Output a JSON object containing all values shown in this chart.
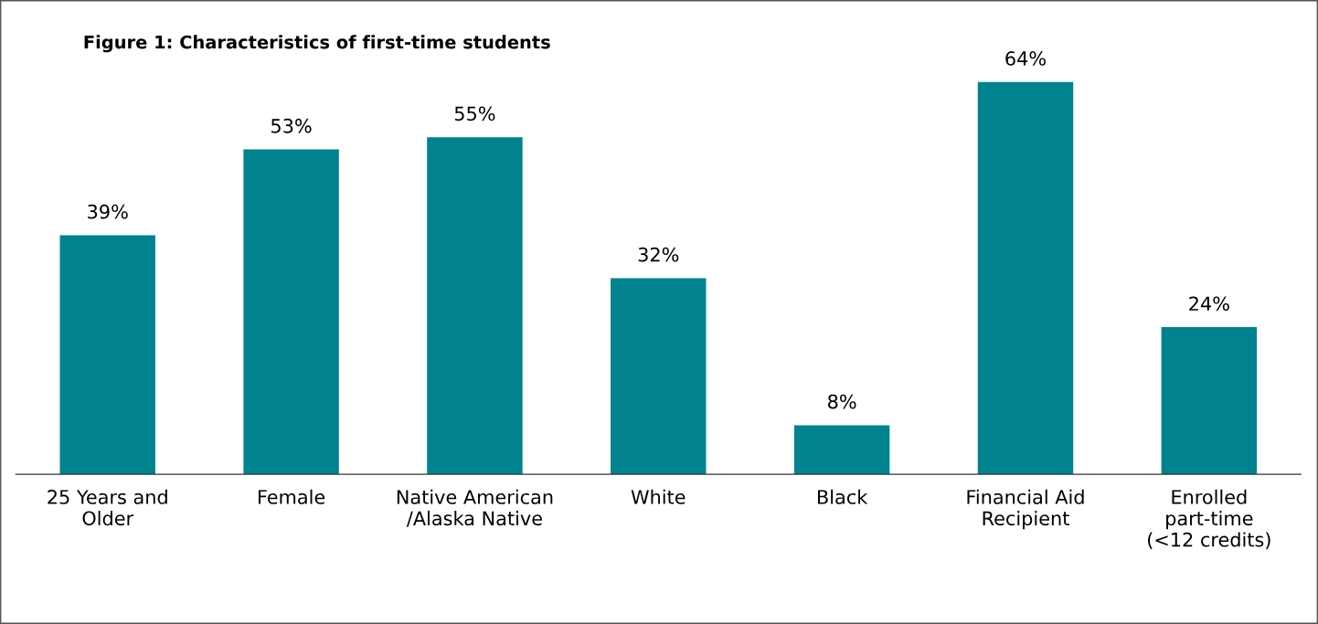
{
  "chart_data": {
    "type": "bar",
    "title": "Figure 1: Characteristics of first-time students",
    "categories": [
      "25 Years and\nOlder",
      "Female",
      "Native American\n/Alaska Native",
      "White",
      "Black",
      "Financial Aid\nRecipient",
      "Enrolled\npart-time\n(<12 credits)"
    ],
    "values": [
      39,
      53,
      55,
      32,
      8,
      64,
      24
    ],
    "value_labels": [
      "39%",
      "53%",
      "55%",
      "32%",
      "8%",
      "64%",
      "24%"
    ],
    "color": "#00838f"
  }
}
